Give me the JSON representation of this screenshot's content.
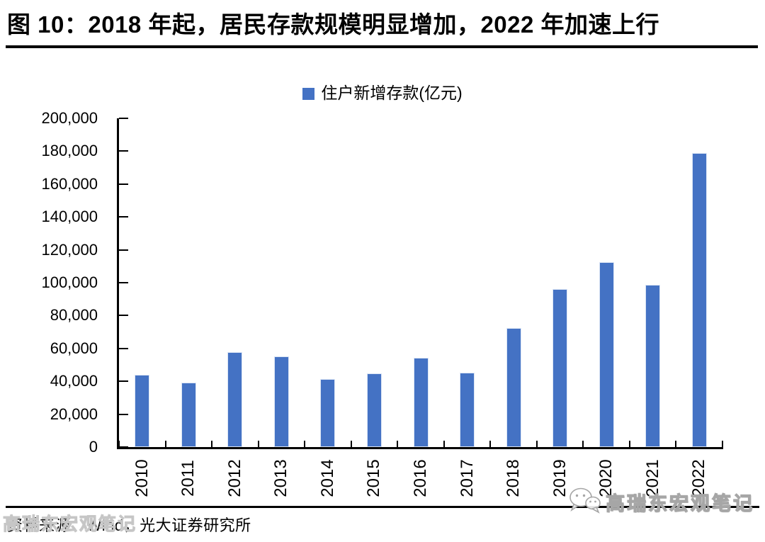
{
  "header": {
    "title": "图 10：2018 年起，居民存款规模明显增加，2022 年加速上行"
  },
  "chart_data": {
    "type": "bar",
    "title": "",
    "legend": "住户新增存款(亿元)",
    "legend_position": "top-center",
    "categories": [
      "2010",
      "2011",
      "2012",
      "2013",
      "2014",
      "2015",
      "2016",
      "2017",
      "2018",
      "2019",
      "2020",
      "2021",
      "2022"
    ],
    "values": [
      43800,
      39400,
      57900,
      55200,
      41400,
      44800,
      54400,
      45200,
      72400,
      96300,
      112700,
      98600,
      179000
    ],
    "xlabel": "",
    "ylabel": "",
    "ylim": [
      0,
      200000
    ],
    "ytick_step": 20000,
    "ytick_labels": [
      "0",
      "20,000",
      "40,000",
      "60,000",
      "80,000",
      "100,000",
      "120,000",
      "140,000",
      "160,000",
      "180,000",
      "200,000"
    ],
    "grid": false,
    "bar_color": "#4472C4",
    "axis_color": "#000000"
  },
  "footer": {
    "source": "资料来源：Wind，光大证券研究所"
  },
  "watermark": {
    "text": "高瑞东宏观笔记",
    "icon": "wechat-logo"
  }
}
